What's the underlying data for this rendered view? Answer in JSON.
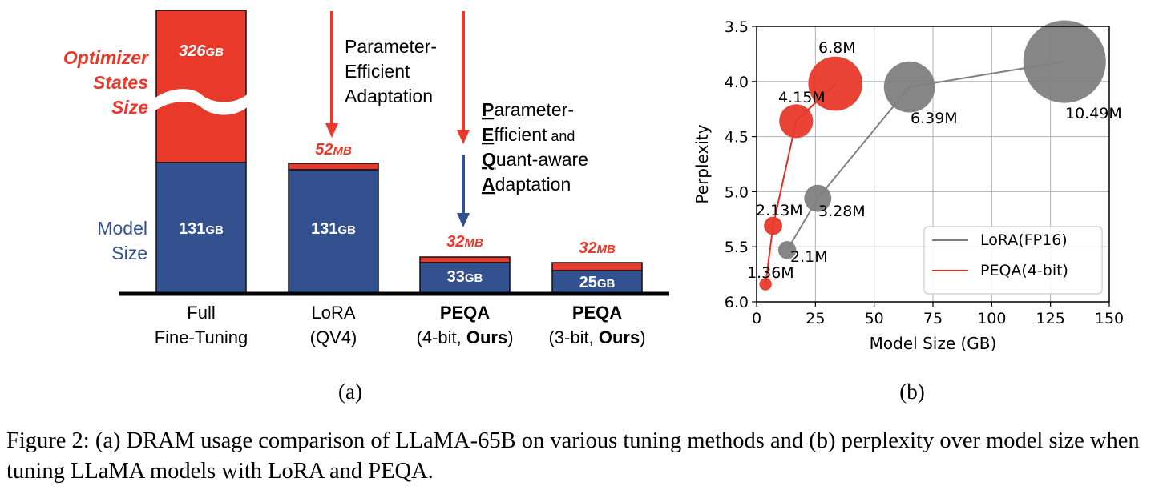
{
  "chart_data": [
    {
      "type": "bar",
      "panel_label": "(a)",
      "stacked": true,
      "categories": [
        {
          "line1": "Full",
          "line2": "Fine-Tuning",
          "line1_bold": "",
          "line2_pre": "",
          "line2_bold": "",
          "line2_post": ""
        },
        {
          "line1": "LoRA",
          "line2": "(QV4)",
          "line1_bold": "",
          "line2_pre": "",
          "line2_bold": "",
          "line2_post": ""
        },
        {
          "line1": "",
          "line2": "",
          "line1_bold": "PEQA",
          "line2_pre": "(4-bit, ",
          "line2_bold": "Ours",
          "line2_post": ")"
        },
        {
          "line1": "",
          "line2": "",
          "line1_bold": "PEQA",
          "line2_pre": "(3-bit, ",
          "line2_bold": "Ours",
          "line2_post": ")"
        }
      ],
      "series": [
        {
          "name": "Model Size",
          "color": "#33508f",
          "labels": [
            "131GB",
            "131GB",
            "33GB",
            "25GB"
          ],
          "label_parts": [
            [
              "131",
              "GB"
            ],
            [
              "131",
              "GB"
            ],
            [
              "33",
              "GB"
            ],
            [
              "25",
              "GB"
            ]
          ]
        },
        {
          "name": "Optimizer States Size",
          "color": "#e8392a",
          "labels": [
            "326GB",
            "52MB",
            "32MB",
            "32MB"
          ],
          "label_parts": [
            [
              "326",
              "GB"
            ],
            [
              "52",
              "MB"
            ],
            [
              "32",
              "MB"
            ],
            [
              "32",
              "MB"
            ]
          ]
        }
      ],
      "axis_break": true,
      "side_labels": {
        "optimizer": [
          "Optimizer",
          "States",
          "Size"
        ],
        "model": [
          "Model",
          "Size"
        ]
      },
      "annotations": {
        "pea": [
          "Parameter-",
          "Efficient",
          "Adaptation"
        ],
        "peqa": [
          {
            "bold": "P",
            "rest": "arameter-"
          },
          {
            "bold": "E",
            "rest": "fficient",
            "small": " and"
          },
          {
            "bold": "Q",
            "rest": "uant-aware"
          },
          {
            "bold": "A",
            "rest": "daptation"
          }
        ]
      }
    },
    {
      "type": "scatter",
      "panel_label": "(b)",
      "xlabel": "Model Size (GB)",
      "ylabel": "Perplexity",
      "xlim": [
        0,
        150
      ],
      "ylim": [
        6.0,
        3.5
      ],
      "xticks": [
        0,
        25,
        50,
        75,
        100,
        125,
        150
      ],
      "yticks": [
        3.5,
        4.0,
        4.5,
        5.0,
        5.5,
        6.0
      ],
      "y_inverted": true,
      "grid": true,
      "legend_position": "bottom-right",
      "series": [
        {
          "name": "LoRA(FP16)",
          "color": "#7f7f7f",
          "line_color": "#808080",
          "points": [
            {
              "x": 13,
              "y": 5.53,
              "label": "2.1M",
              "params_m": 2.1
            },
            {
              "x": 26,
              "y": 5.06,
              "label": "3.28M",
              "params_m": 3.28
            },
            {
              "x": 65,
              "y": 4.05,
              "label": "6.39M",
              "params_m": 6.39
            },
            {
              "x": 131,
              "y": 3.82,
              "label": "10.49M",
              "params_m": 10.49
            }
          ]
        },
        {
          "name": "PEQA(4-bit)",
          "color": "#e8392a",
          "line_color": "#e03022",
          "points": [
            {
              "x": 3.8,
              "y": 5.84,
              "label": "1.36M",
              "params_m": 1.36
            },
            {
              "x": 7,
              "y": 5.31,
              "label": "2.13M",
              "params_m": 2.13
            },
            {
              "x": 16.8,
              "y": 4.36,
              "label": "4.15M",
              "params_m": 4.15
            },
            {
              "x": 33.5,
              "y": 4.02,
              "label": "6.8M",
              "params_m": 6.8
            }
          ]
        }
      ]
    }
  ],
  "caption": "Figure 2: (a) DRAM usage comparison of LLaMA-65B on various tuning methods and (b) perplexity over model size when tuning LLaMA models with LoRA and PEQA."
}
